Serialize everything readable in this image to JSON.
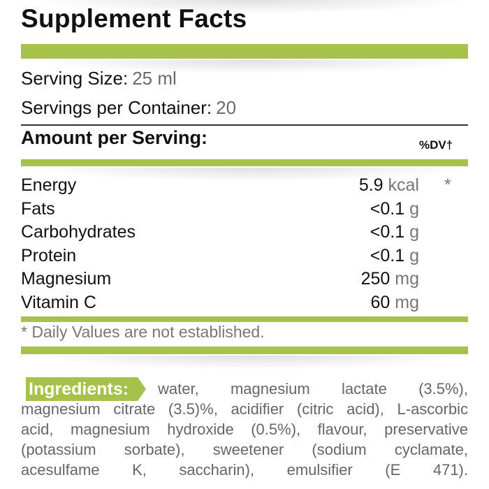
{
  "title": "Supplement Facts",
  "serving_size": {
    "label": "Serving Size:",
    "value": "25 ml"
  },
  "servings_per_container": {
    "label": "Servings per Container:",
    "value": "20"
  },
  "amount_per_serving": "Amount per Serving:",
  "dv_header": "%DV†",
  "nutrients": [
    {
      "name": "Energy",
      "amount": "5.9",
      "unit": "kcal",
      "dv": "*"
    },
    {
      "name": "Fats",
      "amount": "<0.1",
      "unit": "g",
      "dv": ""
    },
    {
      "name": "Carbohydrates",
      "amount": "<0.1",
      "unit": "g",
      "dv": ""
    },
    {
      "name": "Protein",
      "amount": "<0.1",
      "unit": "g",
      "dv": ""
    },
    {
      "name": "Magnesium",
      "amount": "250",
      "unit": "mg",
      "dv": ""
    },
    {
      "name": "Vitamin C",
      "amount": "60",
      "unit": "mg",
      "dv": ""
    }
  ],
  "footnote": "* Daily Values are not established.",
  "ingredients": {
    "label": "Ingredients:",
    "lines": [
      "water, magnesium lactate (3.5%),",
      "magnesium citrate (3.5)%, acidifier (citric acid), L-ascorbic",
      "acid, magnesium hydroxide (0.5%), flavour, preservative",
      "(potassium sorbate), sweetener (sodium cyclamate,",
      "acesulfame K, saccharin), emulsifier (E 471)."
    ]
  },
  "colors": {
    "accent": "#a6c24a",
    "text": "#111111",
    "muted": "#6b6b6b"
  }
}
